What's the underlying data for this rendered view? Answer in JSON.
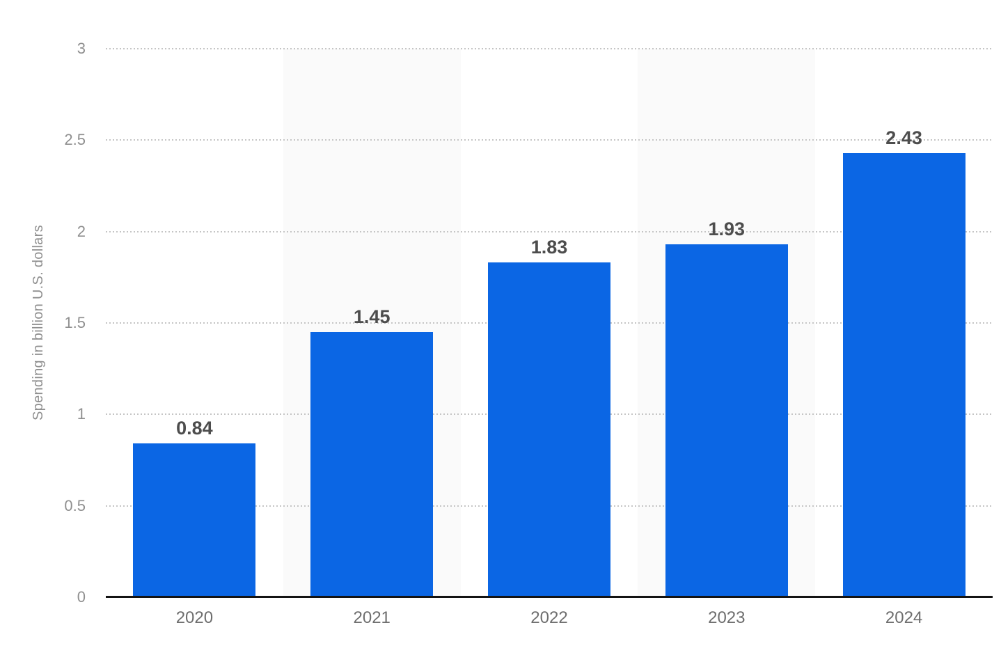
{
  "chart_data": {
    "type": "bar",
    "categories": [
      "2020",
      "2021",
      "2022",
      "2023",
      "2024"
    ],
    "values": [
      0.84,
      1.45,
      1.83,
      1.93,
      2.43
    ],
    "value_labels": [
      "0.84",
      "1.45",
      "1.83",
      "1.93",
      "2.43"
    ],
    "title": "",
    "xlabel": "",
    "ylabel": "Spending in billion U.S. dollars",
    "ylim": [
      0,
      3
    ],
    "yticks": [
      0,
      0.5,
      1,
      1.5,
      2,
      2.5,
      3
    ],
    "grid": "horizontal-dotted",
    "legend": "none",
    "banded_columns": [
      1,
      3
    ],
    "colors": {
      "bar": "#0b66e4",
      "column_band": "#fafafa",
      "gridline": "#c5c5c5",
      "axis_line": "#141414",
      "tick_text": "#8f8f8f",
      "category_text": "#6e6e6e",
      "value_text": "#4d4d4d",
      "background": "#ffffff"
    }
  }
}
